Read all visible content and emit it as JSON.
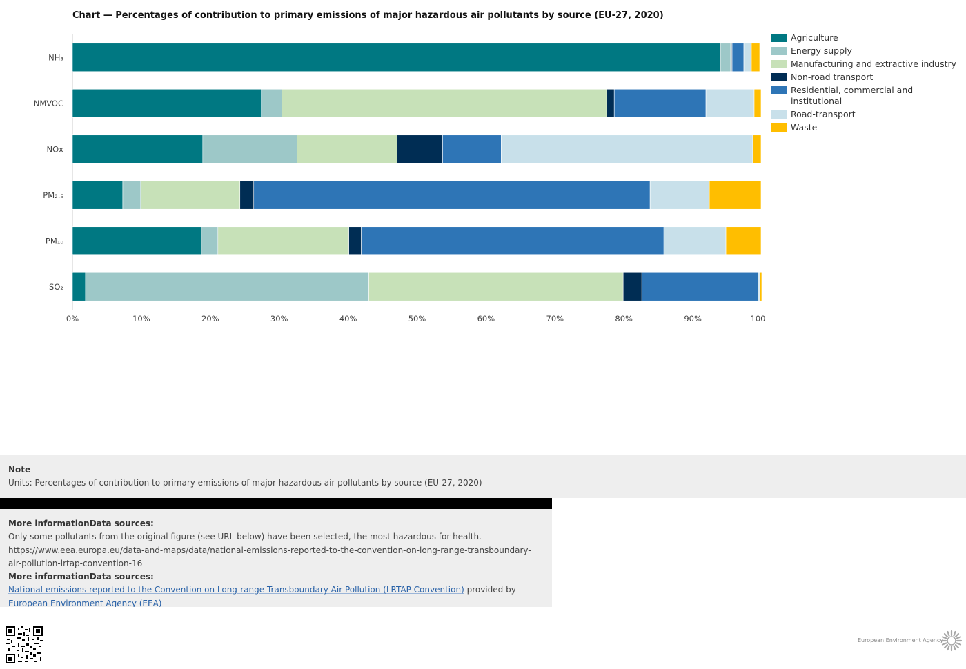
{
  "chart_data": {
    "type": "bar",
    "orientation": "horizontal",
    "stacked": true,
    "title": "Chart — Percentages of contribution to primary emissions of major hazardous air pollutants by source (EU-27, 2020)",
    "categories": [
      "NH₃",
      "NMVOC",
      "NOx",
      "PM₂.₅",
      "PM₁₀",
      "SO₂"
    ],
    "xlim": [
      0,
      100
    ],
    "x_ticks": [
      "0%",
      "10%",
      "20%",
      "30%",
      "40%",
      "50%",
      "60%",
      "70%",
      "80%",
      "90%",
      "100%"
    ],
    "legend_position": "right",
    "series": [
      {
        "name": "Agriculture",
        "color": "#007882",
        "values": [
          94.0,
          27.4,
          18.9,
          7.3,
          18.7,
          1.9
        ]
      },
      {
        "name": "Energy supply",
        "color": "#9dc8c8",
        "values": [
          1.5,
          3.0,
          13.7,
          2.6,
          2.4,
          41.1
        ]
      },
      {
        "name": "Manufacturing and extractive industry",
        "color": "#c7e1b8",
        "values": [
          0.1,
          47.1,
          14.5,
          14.4,
          19.0,
          36.9
        ]
      },
      {
        "name": "Non-road transport",
        "color": "#002d54",
        "values": [
          0.1,
          1.1,
          6.6,
          2.0,
          1.8,
          2.7
        ]
      },
      {
        "name": "Residential, commercial and institutional",
        "color": "#2e75b6",
        "values": [
          1.7,
          13.3,
          8.5,
          57.5,
          43.9,
          16.9
        ]
      },
      {
        "name": "Road-transport",
        "color": "#c8e0ea",
        "values": [
          1.1,
          7.0,
          36.5,
          8.6,
          9.0,
          0.2
        ]
      },
      {
        "name": "Waste",
        "color": "#ffbe00",
        "values": [
          1.2,
          1.0,
          1.2,
          7.5,
          5.1,
          0.3
        ]
      }
    ]
  },
  "note": {
    "title": "Note",
    "text": "Units: Percentages of contribution to primary emissions of major hazardous air pollutants by source (EU-27, 2020)"
  },
  "info": {
    "heading1": "More informationData sources:",
    "line1": "Only some pollutants from the original figure (see URL below) have been selected, the most  hazardous for health.",
    "url": "https://www.eea.europa.eu/data-and-maps/data/national-emissions-reported-to-the-convention-on-long-range-transboundary-air-pollution-lrtap-convention-16",
    "heading2": "More informationData sources:",
    "source_link": "National emissions reported to the Convention on Long-range Transboundary Air Pollution (LRTAP Convention)",
    "provided_by": " provided by ",
    "provider_link": "European Environment Agency (EEA)"
  },
  "footer": {
    "logo_text": "European Environment Agency"
  }
}
